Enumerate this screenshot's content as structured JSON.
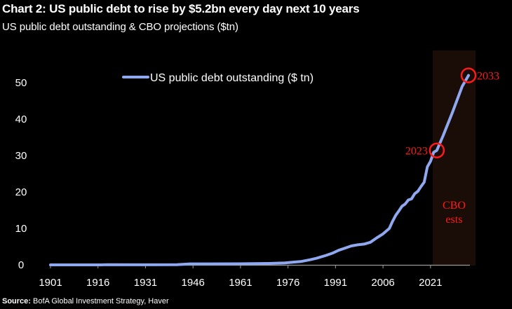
{
  "chart_data": {
    "type": "line",
    "title": "Chart 2: US public debt to rise by $5.2bn every day next 10 years",
    "subtitle": "US public debt outstanding & CBO projections ($tn)",
    "source_label": "Source:",
    "source_text": "BofA Global Investment Strategy, Haver",
    "xlabel": "",
    "ylabel": "",
    "xlim": [
      1901,
      2033
    ],
    "ylim": [
      0,
      55
    ],
    "x_ticks": [
      "1901",
      "1916",
      "1931",
      "1946",
      "1961",
      "1976",
      "1991",
      "2006",
      "2021"
    ],
    "y_ticks": [
      "0",
      "10",
      "20",
      "30",
      "40",
      "50"
    ],
    "legend_position": "top-center",
    "grid": false,
    "series": [
      {
        "name": "US public debt outstanding ($ tn)",
        "color": "#8fa8f0",
        "x": [
          1901,
          1917,
          1919,
          1930,
          1941,
          1945,
          1950,
          1960,
          1965,
          1970,
          1975,
          1978,
          1980,
          1983,
          1985,
          1988,
          1990,
          1992,
          1994,
          1996,
          1998,
          2000,
          2002,
          2004,
          2006,
          2008,
          2009,
          2010,
          2011,
          2012,
          2013,
          2014,
          2015,
          2016,
          2017,
          2018,
          2019,
          2020,
          2021,
          2022,
          2023,
          2025,
          2028,
          2031,
          2033
        ],
        "y": [
          0.0,
          0.0,
          0.03,
          0.02,
          0.05,
          0.26,
          0.26,
          0.29,
          0.32,
          0.38,
          0.53,
          0.77,
          0.91,
          1.4,
          1.8,
          2.6,
          3.2,
          4.0,
          4.6,
          5.2,
          5.5,
          5.7,
          6.2,
          7.4,
          8.5,
          10.0,
          11.9,
          13.6,
          14.8,
          16.1,
          16.7,
          17.8,
          18.1,
          19.5,
          20.2,
          21.5,
          22.7,
          26.9,
          28.4,
          30.9,
          31.4,
          35.5,
          42.0,
          49.0,
          52.0
        ]
      }
    ],
    "shaded_region": {
      "x": [
        2023,
        2033
      ],
      "label_line1": "CBO",
      "label_line2": "ests",
      "color": "#1a0d08"
    },
    "annotations": [
      {
        "label": "2023",
        "x": 2023,
        "y": 31.4
      },
      {
        "label": "2033",
        "x": 2033,
        "y": 52.0
      }
    ],
    "annotation_color": "#ff1a1a"
  }
}
